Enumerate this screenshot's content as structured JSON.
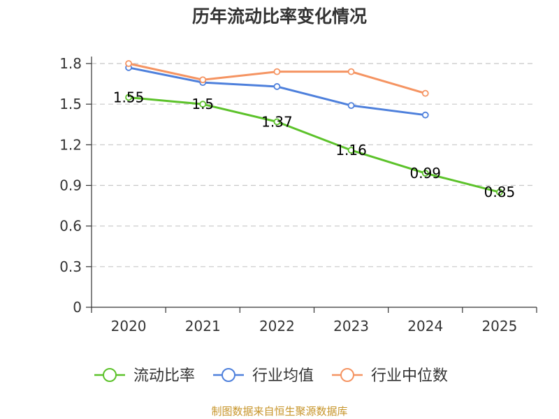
{
  "chart_data": {
    "type": "line",
    "title": "历年流动比率变化情况",
    "categories": [
      "2020",
      "2021",
      "2022",
      "2023",
      "2024",
      "2025"
    ],
    "y_ticks": [
      "0",
      "0.3",
      "0.6",
      "0.9",
      "1.2",
      "1.5",
      "1.8"
    ],
    "ylim": [
      0,
      1.8
    ],
    "grid": true,
    "legend_position": "bottom",
    "series": [
      {
        "name": "流动比率",
        "color": "#5cc22a",
        "values": [
          1.55,
          1.5,
          1.37,
          1.16,
          0.99,
          0.85
        ],
        "labels": [
          "1.55",
          "1.5",
          "1.37",
          "1.16",
          "0.99",
          "0.85"
        ]
      },
      {
        "name": "行业均值",
        "color": "#4e80dc",
        "values": [
          1.77,
          1.66,
          1.63,
          1.49,
          1.42,
          null
        ]
      },
      {
        "name": "行业中位数",
        "color": "#f59462",
        "values": [
          1.8,
          1.68,
          1.74,
          1.74,
          1.58,
          null
        ]
      }
    ]
  },
  "source": "制图数据来自恒生聚源数据库"
}
